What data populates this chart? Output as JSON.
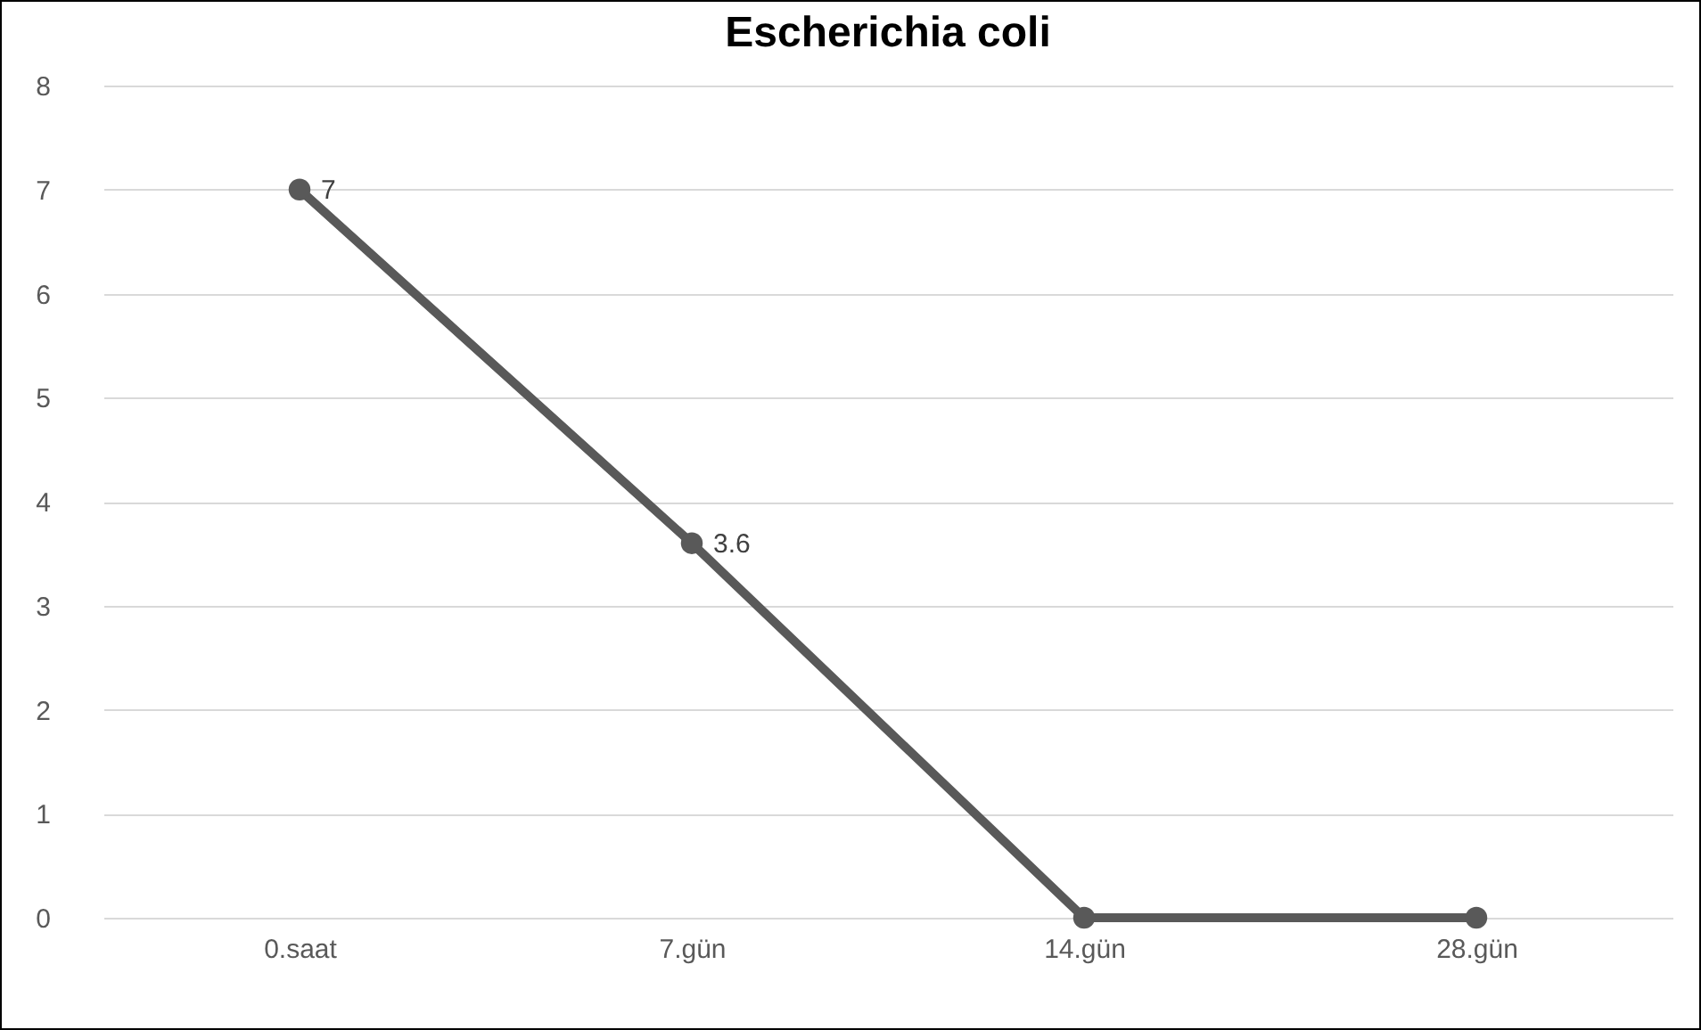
{
  "chart_data": {
    "type": "line",
    "title": "Escherichia coli",
    "categories": [
      "0.saat",
      "7.gün",
      "14.gün",
      "28.gün"
    ],
    "series": [
      {
        "color": "#595959",
        "values": [
          7,
          3.6,
          0,
          0
        ],
        "value_labels": [
          "7",
          "3.6",
          null,
          null
        ]
      }
    ],
    "ylim": [
      0,
      8
    ],
    "yticks": [
      0,
      1,
      2,
      3,
      4,
      5,
      6,
      7,
      8
    ],
    "grid": "y",
    "marker": "circle",
    "line_style": "solid",
    "legend": false
  }
}
